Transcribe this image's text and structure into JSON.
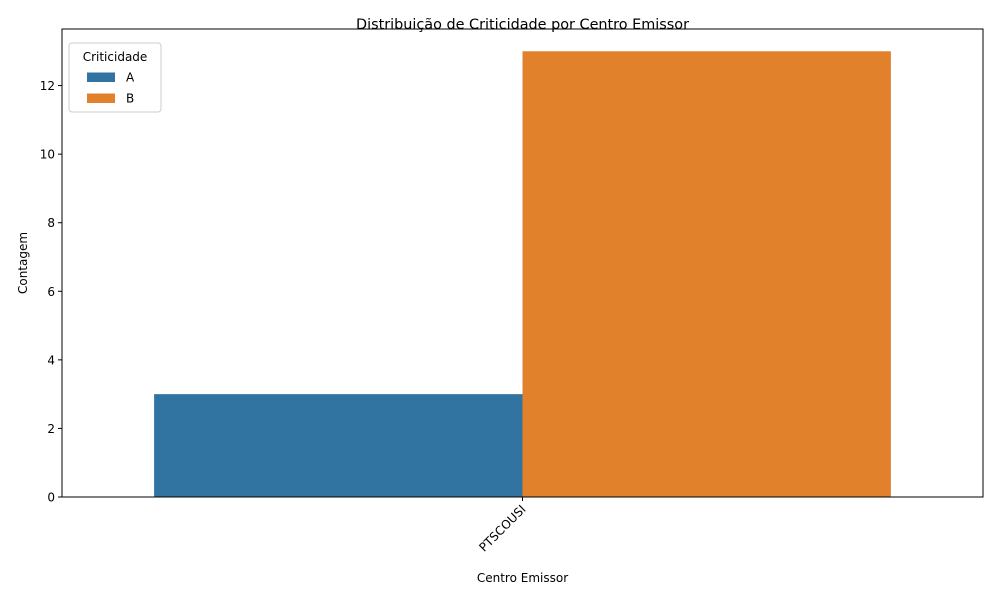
{
  "chart_data": {
    "type": "bar",
    "title": "Distribuição de Criticidade por Centro Emissor",
    "xlabel": "Centro Emissor",
    "ylabel": "Contagem",
    "categories": [
      "PTSCOUSI"
    ],
    "series": [
      {
        "name": "A",
        "values": [
          3
        ],
        "color": "#3274a1"
      },
      {
        "name": "B",
        "values": [
          13
        ],
        "color": "#e1812c"
      }
    ],
    "ylim": [
      0,
      13.65
    ],
    "yticks": [
      0,
      2,
      4,
      6,
      8,
      10,
      12
    ],
    "grid": false,
    "legend": {
      "title": "Criticidade",
      "placement": "upper-left"
    },
    "xtick_rotation_deg": 45
  }
}
